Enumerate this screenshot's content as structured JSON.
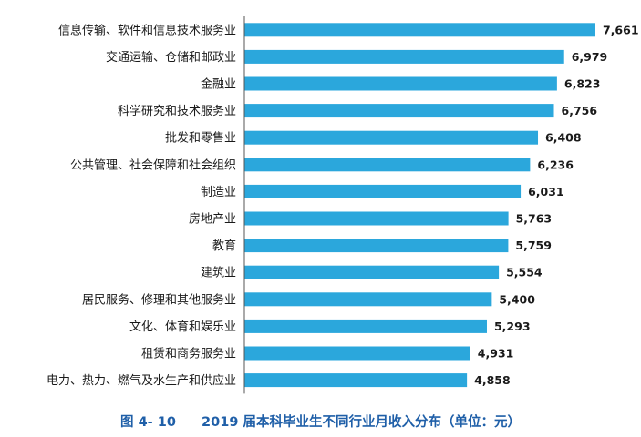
{
  "caption": {
    "figure_no": "图 4- 10",
    "text": "2019 届本科毕业生不同行业月收入分布（单位：元）"
  },
  "chart_data": {
    "type": "bar",
    "orientation": "horizontal",
    "categories": [
      "信息传输、软件和信息技术服务业",
      "交通运输、仓储和邮政业",
      "金融业",
      "科学研究和技术服务业",
      "批发和零售业",
      "公共管理、社会保障和社会组织",
      "制造业",
      "房地产业",
      "教育",
      "建筑业",
      "居民服务、修理和其他服务业",
      "文化、体育和娱乐业",
      "租赁和商务服务业",
      "电力、热力、燃气及水生产和供应业"
    ],
    "values": [
      7661,
      6979,
      6823,
      6756,
      6408,
      6236,
      6031,
      5763,
      5759,
      5554,
      5400,
      5293,
      4931,
      4858
    ],
    "value_labels": [
      "7,661",
      "6,979",
      "6,823",
      "6,756",
      "6,408",
      "6,236",
      "6,031",
      "5,763",
      "5,759",
      "5,554",
      "5,400",
      "5,293",
      "4,931",
      "4,858"
    ],
    "xlim": [
      0,
      7900
    ],
    "grid": false,
    "legend": "none",
    "colors": {
      "bar": "#2ba7dc",
      "axis": "#555555",
      "caption": "#1f5fa8"
    }
  }
}
